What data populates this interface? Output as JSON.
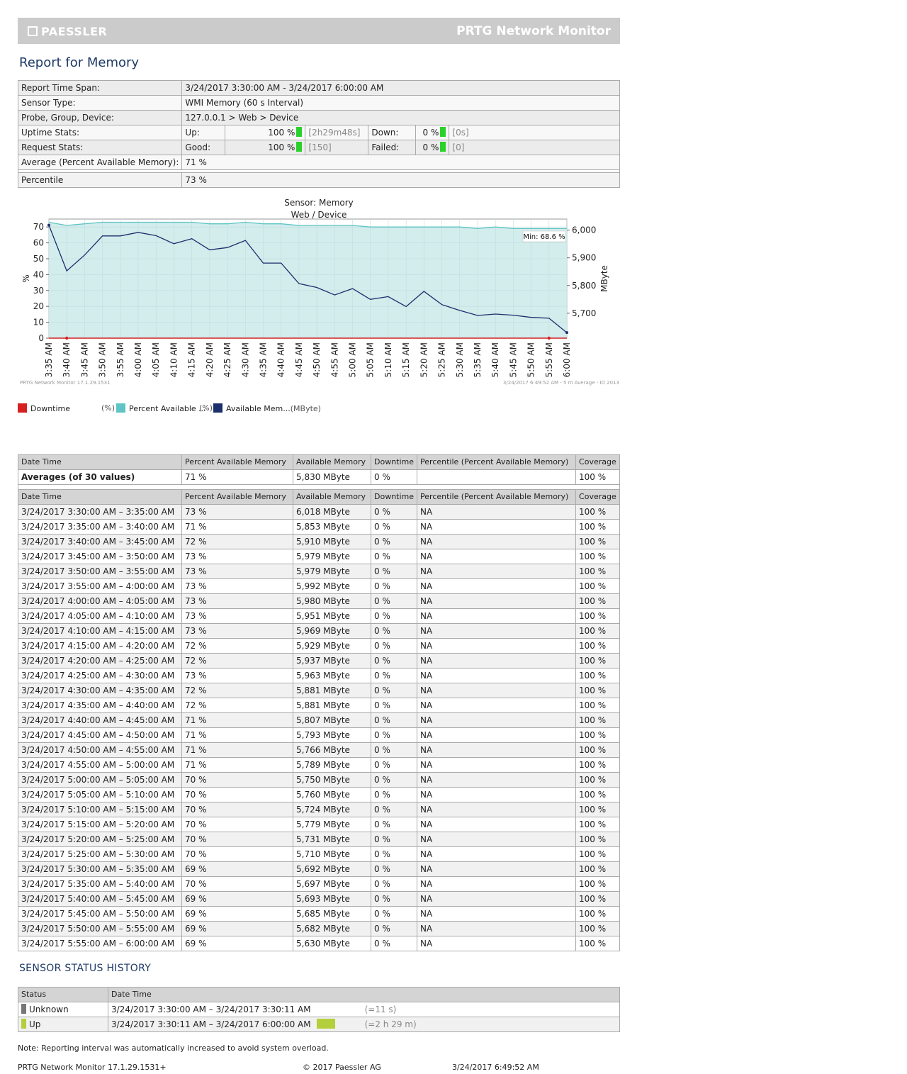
{
  "banner": {
    "logo": "PAESSLER",
    "product": "PRTG Network Monitor"
  },
  "title": "Report for Memory",
  "info": {
    "time_span_label": "Report Time Span:",
    "time_span": "3/24/2017 3:30:00 AM - 3/24/2017 6:00:00 AM",
    "sensor_type_label": "Sensor Type:",
    "sensor_type": "WMI Memory (60 s Interval)",
    "probe_label": "Probe, Group, Device:",
    "probe": "127.0.0.1 > Web > Device",
    "uptime_label": "Uptime Stats:",
    "up_label": "Up:",
    "up_pct": "100 %",
    "up_time": "[2h29m48s]",
    "down_label": "Down:",
    "down_pct": "0 %",
    "down_time": "[0s]",
    "request_label": "Request Stats:",
    "good_label": "Good:",
    "good_pct": "100 %",
    "good_count": "[150]",
    "failed_label": "Failed:",
    "failed_pct": "0 %",
    "failed_count": "[0]",
    "average_label": "Average (Percent Available Memory):",
    "average": "71 %",
    "percentile_label": "Percentile",
    "percentile": "73 %"
  },
  "chart_data": {
    "type": "area",
    "title": "Sensor: Memory",
    "subtitle": "Web / Device",
    "x": [
      "3:35 AM",
      "3:40 AM",
      "3:45 AM",
      "3:50 AM",
      "3:55 AM",
      "4:00 AM",
      "4:05 AM",
      "4:10 AM",
      "4:15 AM",
      "4:20 AM",
      "4:25 AM",
      "4:30 AM",
      "4:35 AM",
      "4:40 AM",
      "4:45 AM",
      "4:50 AM",
      "4:55 AM",
      "5:00 AM",
      "5:05 AM",
      "5:10 AM",
      "5:15 AM",
      "5:20 AM",
      "5:25 AM",
      "5:30 AM",
      "5:35 AM",
      "5:40 AM",
      "5:45 AM",
      "5:50 AM",
      "5:55 AM",
      "6:00 AM"
    ],
    "ylabel_left": "%",
    "ylabel_right": "MByte",
    "ylim_left": [
      0,
      75
    ],
    "yticks_left": [
      0,
      10,
      20,
      30,
      40,
      50,
      60,
      70
    ],
    "ylim_right": [
      5610,
      6040
    ],
    "yticks_right": [
      5700,
      5800,
      5900,
      6000
    ],
    "yticks_right_labels": [
      "5,700",
      "5,800",
      "5,900",
      "6,000"
    ],
    "series": [
      {
        "name": "Downtime",
        "unit": "(%)",
        "axis": "left",
        "color": "#d62020",
        "values": [
          0,
          0,
          0,
          0,
          0,
          0,
          0,
          0,
          0,
          0,
          0,
          0,
          0,
          0,
          0,
          0,
          0,
          0,
          0,
          0,
          0,
          0,
          0,
          0,
          0,
          0,
          0,
          0,
          0,
          0
        ]
      },
      {
        "name": "Percent Available ...",
        "unit": "(%)",
        "axis": "left",
        "color": "#5ec4c4",
        "values": [
          73,
          71,
          72,
          73,
          73,
          73,
          73,
          73,
          73,
          72,
          72,
          73,
          72,
          72,
          71,
          71,
          71,
          71,
          70,
          70,
          70,
          70,
          70,
          70,
          69,
          70,
          69,
          69,
          69,
          69
        ]
      },
      {
        "name": "Available Mem...",
        "unit": "(MByte)",
        "axis": "right",
        "color": "#1a2f6b",
        "values": [
          6018,
          5853,
          5910,
          5979,
          5979,
          5992,
          5980,
          5951,
          5969,
          5929,
          5937,
          5963,
          5881,
          5881,
          5807,
          5793,
          5766,
          5789,
          5750,
          5760,
          5724,
          5779,
          5731,
          5710,
          5692,
          5697,
          5693,
          5685,
          5682,
          5630
        ]
      }
    ],
    "annotation": "Min: 68.6 %",
    "footer_left": "PRTG Network Monitor 17.1.29.1531",
    "footer_right": "3/24/2017 6:49:52 AM - 5 m Average - ID 2013",
    "grid": true
  },
  "table": {
    "headers": [
      "Date Time",
      "Percent Available Memory",
      "Available Memory",
      "Downtime",
      "Percentile (Percent Available Memory)",
      "Coverage"
    ],
    "averages": [
      "Averages (of 30 values)",
      "71 %",
      "5,830 MByte",
      "0 %",
      "",
      "100 %"
    ],
    "rows": [
      [
        "3/24/2017 3:30:00 AM – 3:35:00 AM",
        "73 %",
        "6,018 MByte",
        "0 %",
        "NA",
        "100 %"
      ],
      [
        "3/24/2017 3:35:00 AM – 3:40:00 AM",
        "71 %",
        "5,853 MByte",
        "0 %",
        "NA",
        "100 %"
      ],
      [
        "3/24/2017 3:40:00 AM – 3:45:00 AM",
        "72 %",
        "5,910 MByte",
        "0 %",
        "NA",
        "100 %"
      ],
      [
        "3/24/2017 3:45:00 AM – 3:50:00 AM",
        "73 %",
        "5,979 MByte",
        "0 %",
        "NA",
        "100 %"
      ],
      [
        "3/24/2017 3:50:00 AM – 3:55:00 AM",
        "73 %",
        "5,979 MByte",
        "0 %",
        "NA",
        "100 %"
      ],
      [
        "3/24/2017 3:55:00 AM – 4:00:00 AM",
        "73 %",
        "5,992 MByte",
        "0 %",
        "NA",
        "100 %"
      ],
      [
        "3/24/2017 4:00:00 AM – 4:05:00 AM",
        "73 %",
        "5,980 MByte",
        "0 %",
        "NA",
        "100 %"
      ],
      [
        "3/24/2017 4:05:00 AM – 4:10:00 AM",
        "73 %",
        "5,951 MByte",
        "0 %",
        "NA",
        "100 %"
      ],
      [
        "3/24/2017 4:10:00 AM – 4:15:00 AM",
        "73 %",
        "5,969 MByte",
        "0 %",
        "NA",
        "100 %"
      ],
      [
        "3/24/2017 4:15:00 AM – 4:20:00 AM",
        "72 %",
        "5,929 MByte",
        "0 %",
        "NA",
        "100 %"
      ],
      [
        "3/24/2017 4:20:00 AM – 4:25:00 AM",
        "72 %",
        "5,937 MByte",
        "0 %",
        "NA",
        "100 %"
      ],
      [
        "3/24/2017 4:25:00 AM – 4:30:00 AM",
        "73 %",
        "5,963 MByte",
        "0 %",
        "NA",
        "100 %"
      ],
      [
        "3/24/2017 4:30:00 AM – 4:35:00 AM",
        "72 %",
        "5,881 MByte",
        "0 %",
        "NA",
        "100 %"
      ],
      [
        "3/24/2017 4:35:00 AM – 4:40:00 AM",
        "72 %",
        "5,881 MByte",
        "0 %",
        "NA",
        "100 %"
      ],
      [
        "3/24/2017 4:40:00 AM – 4:45:00 AM",
        "71 %",
        "5,807 MByte",
        "0 %",
        "NA",
        "100 %"
      ],
      [
        "3/24/2017 4:45:00 AM – 4:50:00 AM",
        "71 %",
        "5,793 MByte",
        "0 %",
        "NA",
        "100 %"
      ],
      [
        "3/24/2017 4:50:00 AM – 4:55:00 AM",
        "71 %",
        "5,766 MByte",
        "0 %",
        "NA",
        "100 %"
      ],
      [
        "3/24/2017 4:55:00 AM – 5:00:00 AM",
        "71 %",
        "5,789 MByte",
        "0 %",
        "NA",
        "100 %"
      ],
      [
        "3/24/2017 5:00:00 AM – 5:05:00 AM",
        "70 %",
        "5,750 MByte",
        "0 %",
        "NA",
        "100 %"
      ],
      [
        "3/24/2017 5:05:00 AM – 5:10:00 AM",
        "70 %",
        "5,760 MByte",
        "0 %",
        "NA",
        "100 %"
      ],
      [
        "3/24/2017 5:10:00 AM – 5:15:00 AM",
        "70 %",
        "5,724 MByte",
        "0 %",
        "NA",
        "100 %"
      ],
      [
        "3/24/2017 5:15:00 AM – 5:20:00 AM",
        "70 %",
        "5,779 MByte",
        "0 %",
        "NA",
        "100 %"
      ],
      [
        "3/24/2017 5:20:00 AM – 5:25:00 AM",
        "70 %",
        "5,731 MByte",
        "0 %",
        "NA",
        "100 %"
      ],
      [
        "3/24/2017 5:25:00 AM – 5:30:00 AM",
        "70 %",
        "5,710 MByte",
        "0 %",
        "NA",
        "100 %"
      ],
      [
        "3/24/2017 5:30:00 AM – 5:35:00 AM",
        "69 %",
        "5,692 MByte",
        "0 %",
        "NA",
        "100 %"
      ],
      [
        "3/24/2017 5:35:00 AM – 5:40:00 AM",
        "70 %",
        "5,697 MByte",
        "0 %",
        "NA",
        "100 %"
      ],
      [
        "3/24/2017 5:40:00 AM – 5:45:00 AM",
        "69 %",
        "5,693 MByte",
        "0 %",
        "NA",
        "100 %"
      ],
      [
        "3/24/2017 5:45:00 AM – 5:50:00 AM",
        "69 %",
        "5,685 MByte",
        "0 %",
        "NA",
        "100 %"
      ],
      [
        "3/24/2017 5:50:00 AM – 5:55:00 AM",
        "69 %",
        "5,682 MByte",
        "0 %",
        "NA",
        "100 %"
      ],
      [
        "3/24/2017 5:55:00 AM – 6:00:00 AM",
        "69 %",
        "5,630 MByte",
        "0 %",
        "NA",
        "100 %"
      ]
    ]
  },
  "status_history": {
    "title": "SENSOR STATUS HISTORY",
    "headers": [
      "Status",
      "Date Time"
    ],
    "rows": [
      {
        "status": "Unknown",
        "color": "#777777",
        "range": "3/24/2017 3:30:00 AM – 3/24/2017 3:30:11 AM",
        "duration": "(=11 s)",
        "bar_fraction": 0
      },
      {
        "status": "Up",
        "color": "#b3cf3c",
        "range": "3/24/2017 3:30:11 AM – 3/24/2017 6:00:00 AM",
        "duration": "(=2 h 29 m)",
        "bar_fraction": 1
      }
    ]
  },
  "note": "Note: Reporting interval was automatically increased to avoid system overload.",
  "footer": {
    "version": "PRTG Network Monitor 17.1.29.1531+",
    "copyright": "© 2017 Paessler AG",
    "timestamp": "3/24/2017 6:49:52 AM"
  }
}
